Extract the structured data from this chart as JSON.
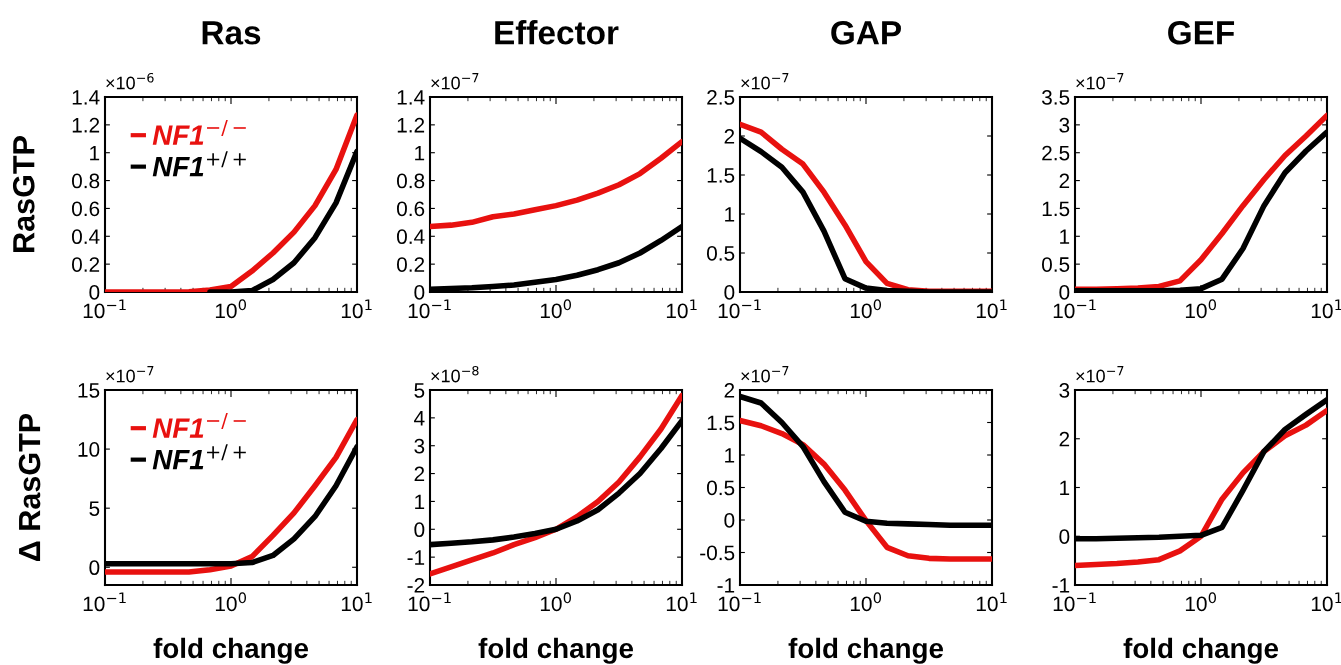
{
  "chart_data": [
    {
      "type": "line",
      "title": "Ras",
      "ylabel": "RasGTP",
      "log": "x",
      "legend": "top left",
      "annotations": [
        "×10$^{−6}$"
      ],
      "x": [
        0.1,
        0.147,
        0.215,
        0.316,
        0.464,
        0.681,
        1,
        1.468,
        2.154,
        3.162,
        4.642,
        6.813,
        10
      ],
      "xlim": [
        0.1,
        10
      ],
      "xticks": [
        {
          "value": 0.1,
          "label": "10$^{−1}$"
        },
        {
          "value": 1,
          "label": "10$^{0}$"
        },
        {
          "value": 10,
          "label": "10$^{1}$"
        }
      ],
      "ylim": [
        0,
        1.4
      ],
      "yticks": [
        0,
        0.2,
        0.4,
        0.6,
        0.8,
        1,
        1.2,
        1.4
      ],
      "series": [
        {
          "name": "NF1$^{−/−}$",
          "color": "#e8110f",
          "values": [
            0,
            0,
            0,
            0,
            0.002,
            0.015,
            0.04,
            0.15,
            0.28,
            0.43,
            0.62,
            0.88,
            1.27
          ]
        },
        {
          "name": "NF1$^{+/+}$",
          "color": "#000000",
          "values": [
            null,
            null,
            null,
            null,
            null,
            0,
            0,
            0.01,
            0.09,
            0.21,
            0.39,
            0.64,
            1.01
          ]
        }
      ]
    },
    {
      "type": "line",
      "title": "Effector",
      "log": "x",
      "annotations": [
        "×10$^{−7}$"
      ],
      "x": [
        0.1,
        0.147,
        0.215,
        0.316,
        0.464,
        0.681,
        1,
        1.468,
        2.154,
        3.162,
        4.642,
        6.813,
        10
      ],
      "xlim": [
        0.1,
        10
      ],
      "xticks": [
        {
          "value": 0.1,
          "label": "10$^{−1}$"
        },
        {
          "value": 1,
          "label": "10$^{0}$"
        },
        {
          "value": 10,
          "label": "10$^{1}$"
        }
      ],
      "ylim": [
        0,
        1.4
      ],
      "yticks": [
        0,
        0.2,
        0.4,
        0.6,
        0.8,
        1,
        1.2,
        1.4
      ],
      "series": [
        {
          "color": "#e8110f",
          "values": [
            0.47,
            0.48,
            0.5,
            0.54,
            0.56,
            0.59,
            0.62,
            0.66,
            0.71,
            0.77,
            0.85,
            0.96,
            1.08
          ]
        },
        {
          "color": "#000000",
          "values": [
            0.02,
            0.025,
            0.03,
            0.04,
            0.05,
            0.07,
            0.09,
            0.12,
            0.16,
            0.21,
            0.28,
            0.37,
            0.47
          ]
        }
      ]
    },
    {
      "type": "line",
      "title": "GAP",
      "log": "x",
      "annotations": [
        "×10$^{−7}$"
      ],
      "x": [
        0.1,
        0.147,
        0.215,
        0.316,
        0.464,
        0.681,
        1,
        1.468,
        2.154,
        3.162,
        4.642,
        6.813,
        10
      ],
      "xlim": [
        0.1,
        10
      ],
      "xticks": [
        {
          "value": 0.1,
          "label": "10$^{−1}$"
        },
        {
          "value": 1,
          "label": "10$^{0}$"
        },
        {
          "value": 10,
          "label": "10$^{1}$"
        }
      ],
      "ylim": [
        0,
        2.5
      ],
      "yticks": [
        0,
        0.5,
        1,
        1.5,
        2,
        2.5
      ],
      "series": [
        {
          "color": "#e8110f",
          "values": [
            2.15,
            2.05,
            1.83,
            1.64,
            1.28,
            0.86,
            0.39,
            0.11,
            0.03,
            0.01,
            0.01,
            0.01,
            0.01
          ]
        },
        {
          "color": "#000000",
          "values": [
            1.97,
            1.8,
            1.6,
            1.28,
            0.78,
            0.17,
            0.05,
            0.02,
            0.01,
            0,
            0,
            0,
            0
          ]
        }
      ]
    },
    {
      "type": "line",
      "title": "GEF",
      "log": "x",
      "annotations": [
        "×10$^{−7}$"
      ],
      "x": [
        0.1,
        0.147,
        0.215,
        0.316,
        0.464,
        0.681,
        1,
        1.468,
        2.154,
        3.162,
        4.642,
        6.813,
        10
      ],
      "xlim": [
        0.1,
        10
      ],
      "xticks": [
        {
          "value": 0.1,
          "label": "10$^{−1}$"
        },
        {
          "value": 1,
          "label": "10$^{0}$"
        },
        {
          "value": 10,
          "label": "10$^{1}$"
        }
      ],
      "ylim": [
        0,
        3.5
      ],
      "yticks": [
        0,
        0.5,
        1,
        1.5,
        2,
        2.5,
        3,
        3.5
      ],
      "series": [
        {
          "color": "#e8110f",
          "values": [
            0.05,
            0.05,
            0.06,
            0.07,
            0.1,
            0.2,
            0.58,
            1.05,
            1.55,
            2.02,
            2.45,
            2.8,
            3.17
          ]
        },
        {
          "color": "#000000",
          "values": [
            0.02,
            0.02,
            0.02,
            0.02,
            0.02,
            0.03,
            0.06,
            0.23,
            0.78,
            1.55,
            2.14,
            2.53,
            2.87
          ]
        }
      ]
    },
    {
      "type": "line",
      "ylabel": "Δ RasGTP",
      "xlabel": "fold change",
      "log": "x",
      "legend": "top left",
      "annotations": [
        "×10$^{−7}$"
      ],
      "x": [
        0.1,
        0.147,
        0.215,
        0.316,
        0.464,
        0.681,
        1,
        1.468,
        2.154,
        3.162,
        4.642,
        6.813,
        10
      ],
      "xlim": [
        0.1,
        10
      ],
      "xticks": [
        {
          "value": 0.1,
          "label": "10$^{−1}$"
        },
        {
          "value": 1,
          "label": "10$^{0}$"
        },
        {
          "value": 10,
          "label": "10$^{1}$"
        }
      ],
      "ylim": [
        -1.5,
        15
      ],
      "yticks": [
        0,
        5,
        10,
        15
      ],
      "series": [
        {
          "name": "NF1$^{−/−}$",
          "color": "#e8110f",
          "values": [
            -0.4,
            -0.4,
            -0.4,
            -0.4,
            -0.4,
            -0.2,
            0.1,
            0.9,
            2.7,
            4.6,
            6.9,
            9.3,
            12.5
          ]
        },
        {
          "name": "NF1$^{+/+}$",
          "color": "#000000",
          "values": [
            0.3,
            0.3,
            0.3,
            0.3,
            0.3,
            0.3,
            0.3,
            0.4,
            1.0,
            2.4,
            4.3,
            6.9,
            10.2
          ]
        }
      ]
    },
    {
      "type": "line",
      "xlabel": "fold change",
      "log": "x",
      "annotations": [
        "×10$^{−8}$"
      ],
      "x": [
        0.1,
        0.147,
        0.215,
        0.316,
        0.464,
        0.681,
        1,
        1.468,
        2.154,
        3.162,
        4.642,
        6.813,
        10
      ],
      "xlim": [
        0.1,
        10
      ],
      "xticks": [
        {
          "value": 0.1,
          "label": "10$^{−1}$"
        },
        {
          "value": 1,
          "label": "10$^{0}$"
        },
        {
          "value": 10,
          "label": "10$^{1}$"
        }
      ],
      "ylim": [
        -2,
        5
      ],
      "yticks": [
        -2,
        -1,
        0,
        1,
        2,
        3,
        4,
        5
      ],
      "series": [
        {
          "color": "#e8110f",
          "values": [
            -1.6,
            -1.35,
            -1.1,
            -0.85,
            -0.55,
            -0.3,
            0,
            0.45,
            1.0,
            1.7,
            2.6,
            3.6,
            4.8
          ]
        },
        {
          "color": "#000000",
          "values": [
            -0.55,
            -0.5,
            -0.45,
            -0.38,
            -0.28,
            -0.15,
            0,
            0.3,
            0.7,
            1.3,
            2.0,
            2.9,
            3.9
          ]
        }
      ]
    },
    {
      "type": "line",
      "xlabel": "fold change",
      "log": "x",
      "annotations": [
        "×10$^{−7}$"
      ],
      "x": [
        0.1,
        0.147,
        0.215,
        0.316,
        0.464,
        0.681,
        1,
        1.468,
        2.154,
        3.162,
        4.642,
        6.813,
        10
      ],
      "xlim": [
        0.1,
        10
      ],
      "xticks": [
        {
          "value": 0.1,
          "label": "10$^{−1}$"
        },
        {
          "value": 1,
          "label": "10$^{0}$"
        },
        {
          "value": 10,
          "label": "10$^{1}$"
        }
      ],
      "ylim": [
        -1,
        2
      ],
      "yticks": [
        -1,
        -0.5,
        0,
        0.5,
        1,
        1.5,
        2
      ],
      "series": [
        {
          "color": "#e8110f",
          "values": [
            1.53,
            1.45,
            1.33,
            1.16,
            0.86,
            0.46,
            -0.01,
            -0.42,
            -0.55,
            -0.59,
            -0.6,
            -0.6,
            -0.6
          ]
        },
        {
          "color": "#000000",
          "values": [
            1.9,
            1.8,
            1.5,
            1.13,
            0.59,
            0.12,
            -0.02,
            -0.05,
            -0.06,
            -0.07,
            -0.08,
            -0.08,
            -0.08
          ]
        }
      ]
    },
    {
      "type": "line",
      "xlabel": "fold change",
      "log": "x",
      "annotations": [
        "×10$^{−7}$"
      ],
      "x": [
        0.1,
        0.147,
        0.215,
        0.316,
        0.464,
        0.681,
        1,
        1.468,
        2.154,
        3.162,
        4.642,
        6.813,
        10
      ],
      "xlim": [
        0.1,
        10
      ],
      "xticks": [
        {
          "value": 0.1,
          "label": "10$^{−1}$"
        },
        {
          "value": 1,
          "label": "10$^{0}$"
        },
        {
          "value": 10,
          "label": "10$^{1}$"
        }
      ],
      "ylim": [
        -1,
        3
      ],
      "yticks": [
        -1,
        0,
        1,
        2,
        3
      ],
      "series": [
        {
          "color": "#e8110f",
          "values": [
            -0.6,
            -0.58,
            -0.56,
            -0.53,
            -0.48,
            -0.3,
            0,
            0.76,
            1.3,
            1.74,
            2.06,
            2.28,
            2.58
          ]
        },
        {
          "color": "#000000",
          "values": [
            -0.05,
            -0.05,
            -0.04,
            -0.03,
            -0.02,
            0,
            0.02,
            0.18,
            0.94,
            1.74,
            2.19,
            2.5,
            2.8
          ]
        }
      ]
    }
  ]
}
